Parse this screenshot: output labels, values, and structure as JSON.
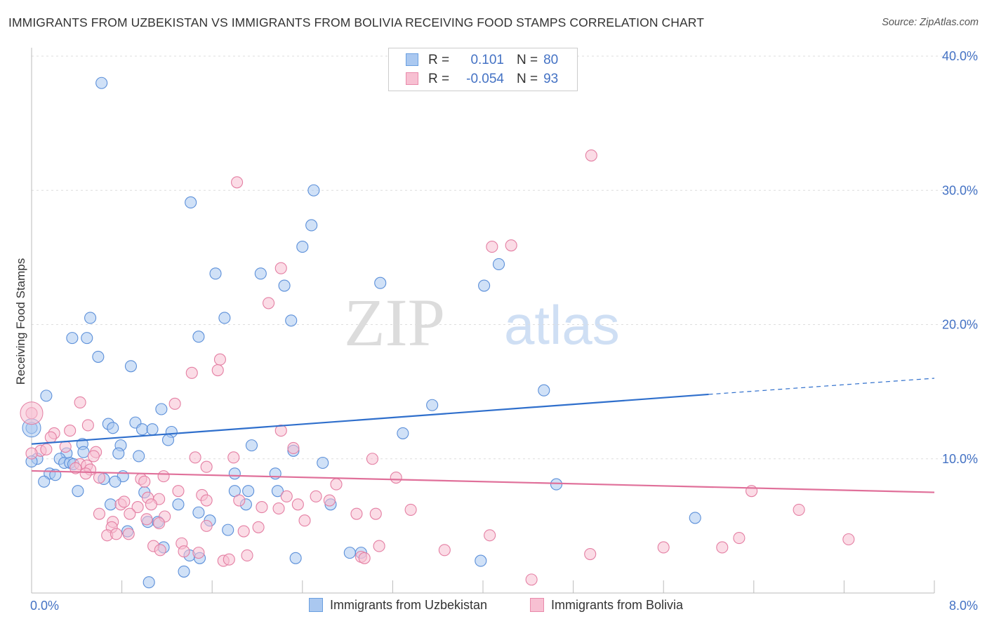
{
  "title": "IMMIGRANTS FROM UZBEKISTAN VS IMMIGRANTS FROM BOLIVIA RECEIVING FOOD STAMPS CORRELATION CHART",
  "source": "Source: ZipAtlas.com",
  "watermark": {
    "zip": "ZIP",
    "atlas": "atlas"
  },
  "legend": {
    "r_label": "R =",
    "n_label": "N =",
    "rows": [
      {
        "r": "0.101",
        "n": "80",
        "color": "#aac8f0",
        "border": "#6a9fe0"
      },
      {
        "r": "-0.054",
        "n": "93",
        "color": "#f7c0d2",
        "border": "#e98aab"
      }
    ]
  },
  "bottom_legend": [
    "Immigrants from Uzbekistan",
    "Immigrants from Bolivia"
  ],
  "colors": {
    "uzbekistan_fill": "#aac8f0",
    "uzbekistan_stroke": "#5b8fd9",
    "uzbekistan_line": "#2f6fcc",
    "bolivia_fill": "#f7c0d2",
    "bolivia_stroke": "#e47fa3",
    "bolivia_line": "#e0709a",
    "axis_tick_label": "#4472c4"
  },
  "chart_data": {
    "type": "scatter",
    "title": "IMMIGRANTS FROM UZBEKISTAN VS IMMIGRANTS FROM BOLIVIA RECEIVING FOOD STAMPS CORRELATION CHART",
    "xlabel": "",
    "ylabel": "Receiving Food Stamps",
    "xlim": [
      0,
      8
    ],
    "ylim": [
      0,
      40
    ],
    "x_tick_labels": [
      "0.0%",
      "8.0%"
    ],
    "y_tick_labels": [
      "10.0%",
      "20.0%",
      "30.0%",
      "40.0%"
    ],
    "y_ticks": [
      10,
      20,
      30,
      40
    ],
    "grid": "horizontal dashed",
    "legend_placement": "top-center",
    "series": [
      {
        "name": "Immigrants from Uzbekistan",
        "r": 0.101,
        "n": 80,
        "trend": {
          "x0": 0,
          "y0": 11.1,
          "x1": 6.0,
          "y1": 14.8,
          "dashed_to_x": 8.0,
          "dashed_to_y": 16.0
        },
        "points": [
          [
            0.62,
            38.0
          ],
          [
            1.41,
            29.1
          ],
          [
            2.5,
            30.0
          ],
          [
            2.48,
            27.4
          ],
          [
            2.4,
            25.8
          ],
          [
            1.63,
            23.8
          ],
          [
            2.03,
            23.8
          ],
          [
            2.24,
            22.9
          ],
          [
            4.14,
            24.5
          ],
          [
            3.09,
            23.1
          ],
          [
            4.01,
            22.9
          ],
          [
            0.52,
            20.5
          ],
          [
            1.71,
            20.5
          ],
          [
            2.3,
            20.3
          ],
          [
            0.36,
            19.0
          ],
          [
            0.49,
            19.0
          ],
          [
            1.48,
            19.1
          ],
          [
            0.59,
            17.6
          ],
          [
            0.88,
            16.9
          ],
          [
            0.13,
            14.7
          ],
          [
            4.54,
            15.1
          ],
          [
            3.55,
            14.0
          ],
          [
            1.15,
            13.7
          ],
          [
            0.68,
            12.6
          ],
          [
            0.92,
            12.7
          ],
          [
            0.98,
            12.2
          ],
          [
            1.07,
            12.2
          ],
          [
            1.24,
            12.0
          ],
          [
            0.72,
            12.3
          ],
          [
            0.0,
            12.3
          ],
          [
            3.29,
            11.9
          ],
          [
            1.21,
            11.4
          ],
          [
            0.45,
            11.1
          ],
          [
            0.79,
            11.0
          ],
          [
            0.31,
            10.4
          ],
          [
            0.46,
            10.5
          ],
          [
            0.77,
            10.4
          ],
          [
            0.95,
            10.2
          ],
          [
            1.95,
            11.0
          ],
          [
            2.32,
            10.6
          ],
          [
            0.05,
            10.0
          ],
          [
            0.25,
            10.0
          ],
          [
            0.29,
            9.7
          ],
          [
            0.34,
            9.7
          ],
          [
            0.0,
            9.8
          ],
          [
            0.37,
            9.6
          ],
          [
            2.58,
            9.7
          ],
          [
            0.16,
            8.9
          ],
          [
            0.21,
            8.8
          ],
          [
            0.81,
            8.7
          ],
          [
            1.8,
            8.9
          ],
          [
            2.16,
            8.9
          ],
          [
            0.64,
            8.5
          ],
          [
            0.74,
            8.3
          ],
          [
            0.11,
            8.3
          ],
          [
            4.65,
            8.1
          ],
          [
            0.41,
            7.6
          ],
          [
            1.0,
            7.5
          ],
          [
            1.8,
            7.6
          ],
          [
            1.92,
            7.6
          ],
          [
            2.18,
            7.6
          ],
          [
            0.7,
            6.6
          ],
          [
            1.3,
            6.6
          ],
          [
            1.9,
            6.6
          ],
          [
            2.65,
            6.6
          ],
          [
            1.48,
            6.0
          ],
          [
            1.58,
            5.4
          ],
          [
            5.88,
            5.6
          ],
          [
            1.03,
            5.3
          ],
          [
            1.12,
            5.3
          ],
          [
            1.74,
            4.7
          ],
          [
            0.85,
            4.6
          ],
          [
            1.17,
            3.4
          ],
          [
            1.4,
            2.8
          ],
          [
            1.49,
            2.6
          ],
          [
            2.82,
            3.0
          ],
          [
            2.92,
            3.0
          ],
          [
            2.34,
            2.6
          ],
          [
            3.98,
            2.4
          ],
          [
            1.35,
            1.6
          ],
          [
            1.04,
            0.8
          ]
        ]
      },
      {
        "name": "Immigrants from Bolivia",
        "r": -0.054,
        "n": 93,
        "trend": {
          "x0": 0,
          "y0": 9.1,
          "x1": 8.0,
          "y1": 7.5
        },
        "points": [
          [
            4.96,
            32.6
          ],
          [
            1.82,
            30.6
          ],
          [
            4.08,
            25.8
          ],
          [
            4.25,
            25.9
          ],
          [
            2.21,
            24.2
          ],
          [
            2.1,
            21.6
          ],
          [
            1.67,
            17.4
          ],
          [
            1.65,
            16.6
          ],
          [
            1.42,
            16.4
          ],
          [
            0.43,
            14.2
          ],
          [
            1.27,
            14.1
          ],
          [
            0.0,
            13.4
          ],
          [
            0.5,
            12.5
          ],
          [
            0.34,
            12.1
          ],
          [
            0.2,
            11.9
          ],
          [
            0.17,
            11.6
          ],
          [
            2.21,
            12.1
          ],
          [
            0.3,
            10.9
          ],
          [
            0.08,
            10.6
          ],
          [
            0.13,
            10.7
          ],
          [
            0.0,
            10.4
          ],
          [
            0.57,
            10.5
          ],
          [
            1.45,
            10.1
          ],
          [
            2.32,
            10.8
          ],
          [
            0.55,
            10.2
          ],
          [
            1.79,
            10.1
          ],
          [
            3.02,
            10.0
          ],
          [
            0.43,
            9.6
          ],
          [
            0.49,
            9.5
          ],
          [
            0.39,
            9.3
          ],
          [
            0.52,
            9.2
          ],
          [
            1.55,
            9.4
          ],
          [
            0.48,
            8.9
          ],
          [
            1.17,
            8.7
          ],
          [
            0.6,
            8.6
          ],
          [
            0.97,
            8.5
          ],
          [
            1.0,
            8.3
          ],
          [
            3.23,
            8.6
          ],
          [
            2.7,
            8.1
          ],
          [
            1.3,
            7.6
          ],
          [
            6.38,
            7.6
          ],
          [
            1.51,
            7.3
          ],
          [
            2.26,
            7.2
          ],
          [
            2.52,
            7.2
          ],
          [
            2.64,
            6.9
          ],
          [
            1.03,
            7.1
          ],
          [
            1.13,
            7.0
          ],
          [
            1.55,
            6.9
          ],
          [
            1.84,
            6.9
          ],
          [
            2.04,
            6.4
          ],
          [
            2.19,
            6.3
          ],
          [
            3.36,
            6.2
          ],
          [
            1.06,
            6.6
          ],
          [
            0.79,
            6.6
          ],
          [
            0.94,
            6.4
          ],
          [
            2.36,
            6.6
          ],
          [
            6.8,
            6.2
          ],
          [
            0.6,
            5.9
          ],
          [
            0.87,
            5.9
          ],
          [
            1.18,
            5.7
          ],
          [
            2.88,
            5.9
          ],
          [
            3.05,
            5.9
          ],
          [
            0.72,
            5.3
          ],
          [
            1.13,
            5.2
          ],
          [
            1.55,
            5.0
          ],
          [
            2.01,
            4.9
          ],
          [
            0.71,
            4.9
          ],
          [
            2.42,
            5.4
          ],
          [
            0.67,
            4.3
          ],
          [
            0.75,
            4.4
          ],
          [
            1.88,
            4.6
          ],
          [
            4.06,
            4.3
          ],
          [
            6.27,
            4.1
          ],
          [
            7.24,
            4.0
          ],
          [
            1.33,
            3.7
          ],
          [
            1.08,
            3.5
          ],
          [
            3.08,
            3.5
          ],
          [
            3.66,
            3.2
          ],
          [
            5.6,
            3.4
          ],
          [
            6.12,
            3.4
          ],
          [
            1.35,
            3.1
          ],
          [
            1.48,
            3.0
          ],
          [
            1.91,
            2.8
          ],
          [
            4.95,
            2.9
          ],
          [
            2.92,
            2.7
          ],
          [
            1.7,
            2.4
          ],
          [
            1.75,
            2.5
          ],
          [
            2.95,
            2.6
          ],
          [
            4.43,
            1.0
          ],
          [
            0.86,
            4.4
          ],
          [
            1.14,
            3.2
          ],
          [
            0.82,
            6.8
          ],
          [
            1.02,
            5.5
          ]
        ]
      }
    ]
  }
}
